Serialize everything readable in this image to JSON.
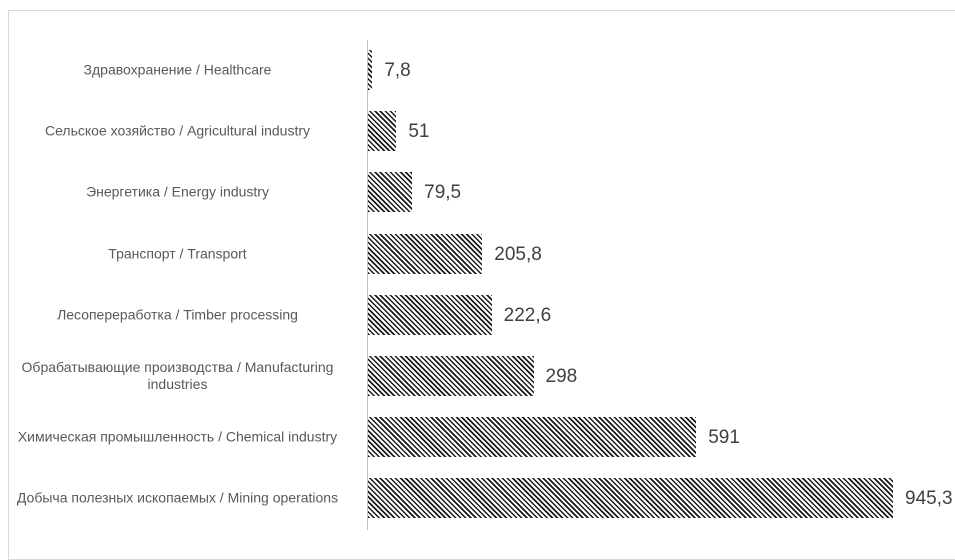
{
  "chart_data": {
    "type": "bar",
    "orientation": "horizontal",
    "categories": [
      "Здравохранение / Healthcare",
      "Сельское хозяйство / Agricultural industry",
      "Энергетика / Energy industry",
      "Транспорт / Transport",
      "Лесопереработка / Timber processing",
      "Обрабатывающие производства / Manufacturing industries",
      "Химическая промышленность / Chemical industry",
      "Добыча полезных ископаемых / Mining operations"
    ],
    "values": [
      7.8,
      51,
      79.5,
      205.8,
      222.6,
      298,
      591,
      945.3
    ],
    "value_labels": [
      "7,8",
      "51",
      "79,5",
      "205,8",
      "222,6",
      "298",
      "591",
      "945,3"
    ],
    "color": "#1a1a1a"
  }
}
